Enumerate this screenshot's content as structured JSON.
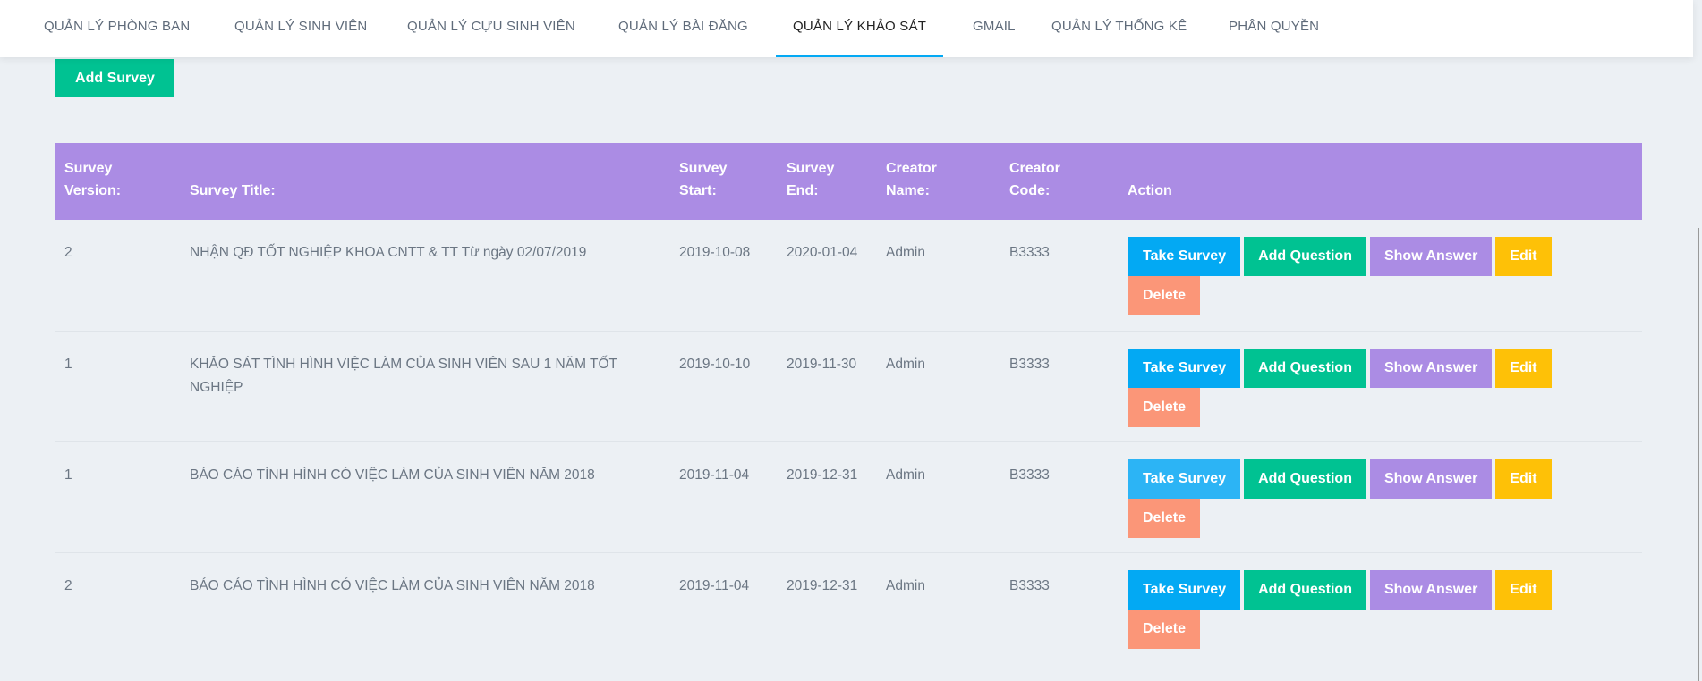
{
  "nav": {
    "items": [
      "QUẢN LÝ PHÒNG BAN",
      "QUẢN LÝ SINH VIÊN",
      "QUẢN LÝ CỰU SINH VIÊN",
      "QUẢN LÝ BÀI ĐĂNG",
      "QUẢN LÝ KHẢO SÁT",
      "GMAIL",
      "QUẢN LÝ THỐNG KÊ",
      "PHÂN QUYỀN"
    ],
    "active": "QUẢN LÝ KHẢO SÁT"
  },
  "add_survey": "Add Survey",
  "table": {
    "headers": [
      "Survey Version:",
      "Survey Title:",
      "Survey Start:",
      "Survey End:",
      "Creator Name:",
      "Creator Code:",
      "Action"
    ],
    "rows": [
      {
        "version": "2",
        "title": "NHẬN QĐ TỐT NGHIỆP KHOA CNTT & TT Từ ngày 02/07/2019",
        "start": "2019-10-08",
        "end": "2020-01-04",
        "creator": "Admin",
        "code": "B3333"
      },
      {
        "version": "1",
        "title": "KHẢO SÁT TÌNH HÌNH VIỆC LÀM CỦA SINH VIÊN SAU 1 NĂM TỐT NGHIỆP",
        "start": "2019-10-10",
        "end": "2019-11-30",
        "creator": "Admin",
        "code": "B3333"
      },
      {
        "version": "1",
        "title": "BÁO CÁO TÌNH HÌNH CÓ VIỆC LÀM CỦA SINH VIÊN NĂM 2018",
        "start": "2019-11-04",
        "end": "2019-12-31",
        "creator": "Admin",
        "code": "B3333"
      },
      {
        "version": "2",
        "title": "BÁO CÁO TÌNH HÌNH CÓ VIỆC LÀM CỦA SINH VIÊN NĂM 2018",
        "start": "2019-11-04",
        "end": "2019-12-31",
        "creator": "Admin",
        "code": "B3333"
      }
    ],
    "actions": {
      "take": "Take Survey",
      "add_question": "Add Question",
      "show_answer": "Show Answer",
      "edit": "Edit",
      "delete": "Delete"
    }
  },
  "colors": {
    "header": "#ab8ce4",
    "take": "#03a9f3",
    "add": "#00c292",
    "show": "#ab8ce4",
    "edit": "#fec107",
    "delete": "#fb9678",
    "active_tab": "#03a9f4"
  }
}
